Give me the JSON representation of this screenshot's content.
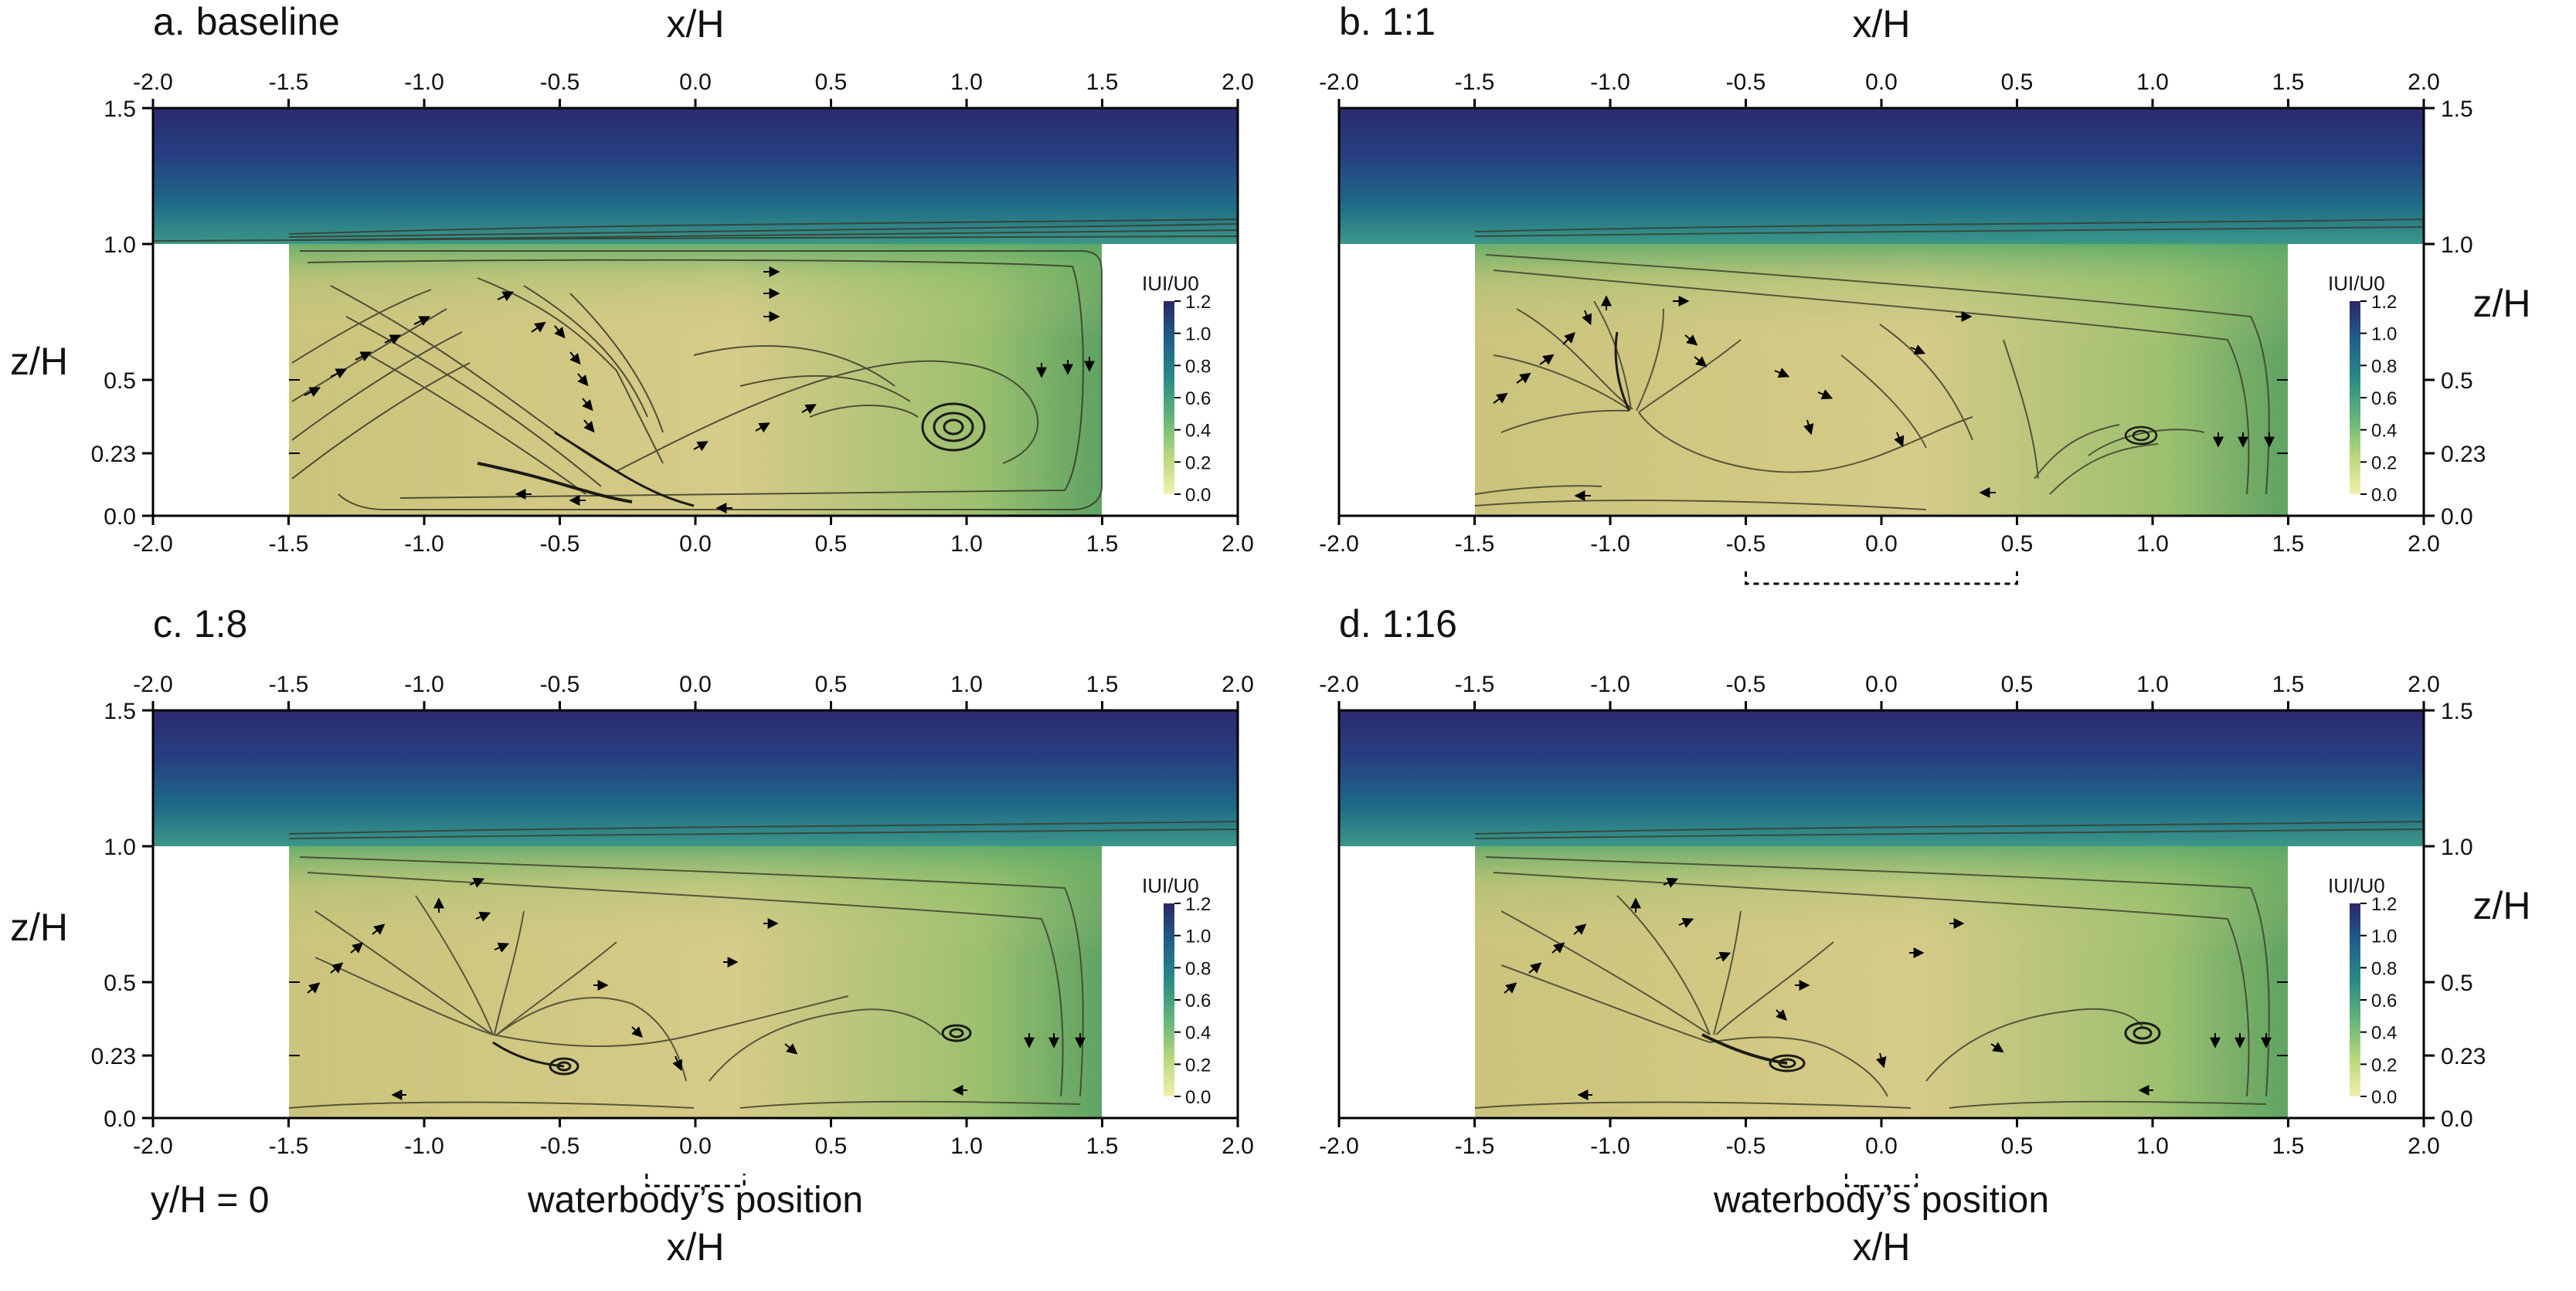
{
  "figure": {
    "axis_x_label": "x/H",
    "axis_z_label": "z/H",
    "section_label": "y/H = 0",
    "waterbody_label": "waterbody’s position"
  },
  "chart_data": [
    {
      "type": "streamline-contour",
      "panel": "a",
      "title": "a. baseline",
      "xlabel": "x/H",
      "ylabel": "z/H",
      "xlim": [
        -2.0,
        2.0
      ],
      "ylim": [
        0.0,
        1.5
      ],
      "xticks": [
        "-2.0",
        "-1.5",
        "-1.0",
        "-0.5",
        "0.0",
        "0.5",
        "1.0",
        "1.5",
        "2.0"
      ],
      "yticks": [
        "0.0",
        "0.23",
        "0.5",
        "1.0",
        "1.5"
      ],
      "buildings": [
        {
          "x": [
            -2.0,
            -1.5
          ],
          "top": 1.0
        },
        {
          "x": [
            1.5,
            2.0
          ],
          "top": 1.0
        }
      ],
      "colorbar": {
        "label": "IUI/U0",
        "min": 0.0,
        "max": 1.2,
        "ticks": [
          "0.0",
          "0.2",
          "0.4",
          "0.6",
          "0.8",
          "1.0",
          "1.2"
        ]
      },
      "vortices": [
        {
          "x": 0.97,
          "z": 0.35
        }
      ],
      "waterbody": null
    },
    {
      "type": "streamline-contour",
      "panel": "b",
      "title": "b. 1:1",
      "xlabel": "x/H",
      "ylabel": "z/H",
      "xlim": [
        -2.0,
        2.0
      ],
      "ylim": [
        0.0,
        1.5
      ],
      "xticks": [
        "-2.0",
        "-1.5",
        "-1.0",
        "-0.5",
        "0.0",
        "0.5",
        "1.0",
        "1.5",
        "2.0"
      ],
      "yticks": [
        "0.0",
        "0.23",
        "0.5",
        "1.0",
        "1.5"
      ],
      "buildings": [
        {
          "x": [
            -2.0,
            -1.5
          ],
          "top": 1.0
        },
        {
          "x": [
            1.5,
            2.0
          ],
          "top": 1.0
        }
      ],
      "colorbar": {
        "label": "IUI/U0",
        "min": 0.0,
        "max": 1.2,
        "ticks": [
          "0.0",
          "0.2",
          "0.4",
          "0.6",
          "0.8",
          "1.0",
          "1.2"
        ]
      },
      "vortices": [
        {
          "x": -0.9,
          "z": 0.38
        },
        {
          "x": 0.95,
          "z": 0.3
        }
      ],
      "waterbody": [
        -0.5,
        0.5
      ]
    },
    {
      "type": "streamline-contour",
      "panel": "c",
      "title": "c. 1:8",
      "xlabel": "x/H",
      "ylabel": "z/H",
      "xlim": [
        -2.0,
        2.0
      ],
      "ylim": [
        0.0,
        1.5
      ],
      "xticks": [
        "-2.0",
        "-1.5",
        "-1.0",
        "-0.5",
        "0.0",
        "0.5",
        "1.0",
        "1.5",
        "2.0"
      ],
      "yticks": [
        "0.0",
        "0.23",
        "0.5",
        "1.0",
        "1.5"
      ],
      "buildings": [
        {
          "x": [
            -2.0,
            -1.5
          ],
          "top": 1.0
        },
        {
          "x": [
            1.5,
            2.0
          ],
          "top": 1.0
        }
      ],
      "colorbar": {
        "label": "IUI/U0",
        "min": 0.0,
        "max": 1.2,
        "ticks": [
          "0.0",
          "0.2",
          "0.4",
          "0.6",
          "0.8",
          "1.0",
          "1.2"
        ]
      },
      "vortices": [
        {
          "x": -0.5,
          "z": 0.19
        },
        {
          "x": 0.97,
          "z": 0.32
        }
      ],
      "waterbody": [
        -0.18,
        0.18
      ]
    },
    {
      "type": "streamline-contour",
      "panel": "d",
      "title": "d. 1:16",
      "xlabel": "x/H",
      "ylabel": "z/H",
      "xlim": [
        -2.0,
        2.0
      ],
      "ylim": [
        0.0,
        1.5
      ],
      "xticks": [
        "-2.0",
        "-1.5",
        "-1.0",
        "-0.5",
        "0.0",
        "0.5",
        "1.0",
        "1.5",
        "2.0"
      ],
      "yticks": [
        "0.0",
        "0.23",
        "0.5",
        "1.0",
        "1.5"
      ],
      "buildings": [
        {
          "x": [
            -2.0,
            -1.5
          ],
          "top": 1.0
        },
        {
          "x": [
            1.5,
            2.0
          ],
          "top": 1.0
        }
      ],
      "colorbar": {
        "label": "IUI/U0",
        "min": 0.0,
        "max": 1.2,
        "ticks": [
          "0.0",
          "0.2",
          "0.4",
          "0.6",
          "0.8",
          "1.0",
          "1.2"
        ]
      },
      "vortices": [
        {
          "x": -0.45,
          "z": 0.2
        },
        {
          "x": 0.97,
          "z": 0.32
        }
      ],
      "waterbody": [
        -0.13,
        0.13
      ]
    }
  ],
  "colors": {
    "sky_top": "#2b2b74",
    "sky_mid": "#1f6587",
    "sky_low": "#3f9b8a",
    "canyon_green": "#6da95e",
    "canyon_tan": "#d9cd8a",
    "streamline": "#3a3a2c",
    "building": "#ffffff"
  }
}
